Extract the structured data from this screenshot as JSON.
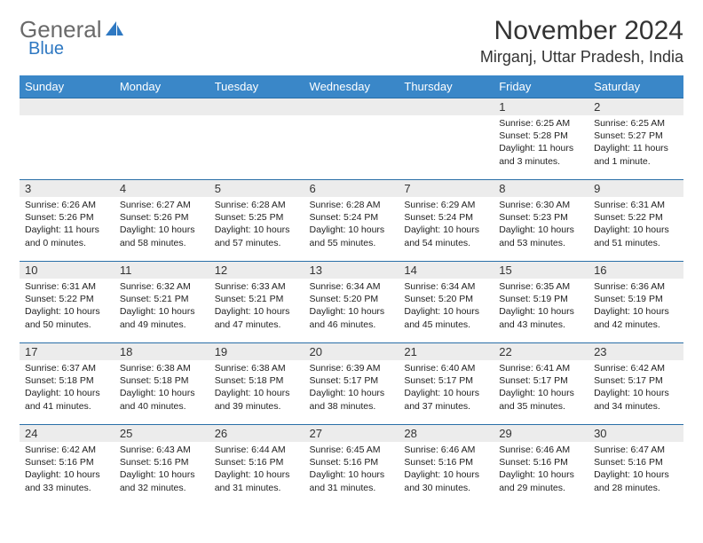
{
  "brand": {
    "part1": "General",
    "part2": "Blue"
  },
  "colors": {
    "header_bg": "#3a87c8",
    "header_text": "#ffffff",
    "row_border": "#2a6fa8",
    "daynum_bg": "#ececec",
    "text": "#222222",
    "brand_gray": "#6a6a6a",
    "brand_blue": "#2e78c2"
  },
  "title": "November 2024",
  "location": "Mirganj, Uttar Pradesh, India",
  "weekdays": [
    "Sunday",
    "Monday",
    "Tuesday",
    "Wednesday",
    "Thursday",
    "Friday",
    "Saturday"
  ],
  "weeks": [
    [
      null,
      null,
      null,
      null,
      null,
      {
        "n": "1",
        "sr": "Sunrise: 6:25 AM",
        "ss": "Sunset: 5:28 PM",
        "dl": "Daylight: 11 hours and 3 minutes."
      },
      {
        "n": "2",
        "sr": "Sunrise: 6:25 AM",
        "ss": "Sunset: 5:27 PM",
        "dl": "Daylight: 11 hours and 1 minute."
      }
    ],
    [
      {
        "n": "3",
        "sr": "Sunrise: 6:26 AM",
        "ss": "Sunset: 5:26 PM",
        "dl": "Daylight: 11 hours and 0 minutes."
      },
      {
        "n": "4",
        "sr": "Sunrise: 6:27 AM",
        "ss": "Sunset: 5:26 PM",
        "dl": "Daylight: 10 hours and 58 minutes."
      },
      {
        "n": "5",
        "sr": "Sunrise: 6:28 AM",
        "ss": "Sunset: 5:25 PM",
        "dl": "Daylight: 10 hours and 57 minutes."
      },
      {
        "n": "6",
        "sr": "Sunrise: 6:28 AM",
        "ss": "Sunset: 5:24 PM",
        "dl": "Daylight: 10 hours and 55 minutes."
      },
      {
        "n": "7",
        "sr": "Sunrise: 6:29 AM",
        "ss": "Sunset: 5:24 PM",
        "dl": "Daylight: 10 hours and 54 minutes."
      },
      {
        "n": "8",
        "sr": "Sunrise: 6:30 AM",
        "ss": "Sunset: 5:23 PM",
        "dl": "Daylight: 10 hours and 53 minutes."
      },
      {
        "n": "9",
        "sr": "Sunrise: 6:31 AM",
        "ss": "Sunset: 5:22 PM",
        "dl": "Daylight: 10 hours and 51 minutes."
      }
    ],
    [
      {
        "n": "10",
        "sr": "Sunrise: 6:31 AM",
        "ss": "Sunset: 5:22 PM",
        "dl": "Daylight: 10 hours and 50 minutes."
      },
      {
        "n": "11",
        "sr": "Sunrise: 6:32 AM",
        "ss": "Sunset: 5:21 PM",
        "dl": "Daylight: 10 hours and 49 minutes."
      },
      {
        "n": "12",
        "sr": "Sunrise: 6:33 AM",
        "ss": "Sunset: 5:21 PM",
        "dl": "Daylight: 10 hours and 47 minutes."
      },
      {
        "n": "13",
        "sr": "Sunrise: 6:34 AM",
        "ss": "Sunset: 5:20 PM",
        "dl": "Daylight: 10 hours and 46 minutes."
      },
      {
        "n": "14",
        "sr": "Sunrise: 6:34 AM",
        "ss": "Sunset: 5:20 PM",
        "dl": "Daylight: 10 hours and 45 minutes."
      },
      {
        "n": "15",
        "sr": "Sunrise: 6:35 AM",
        "ss": "Sunset: 5:19 PM",
        "dl": "Daylight: 10 hours and 43 minutes."
      },
      {
        "n": "16",
        "sr": "Sunrise: 6:36 AM",
        "ss": "Sunset: 5:19 PM",
        "dl": "Daylight: 10 hours and 42 minutes."
      }
    ],
    [
      {
        "n": "17",
        "sr": "Sunrise: 6:37 AM",
        "ss": "Sunset: 5:18 PM",
        "dl": "Daylight: 10 hours and 41 minutes."
      },
      {
        "n": "18",
        "sr": "Sunrise: 6:38 AM",
        "ss": "Sunset: 5:18 PM",
        "dl": "Daylight: 10 hours and 40 minutes."
      },
      {
        "n": "19",
        "sr": "Sunrise: 6:38 AM",
        "ss": "Sunset: 5:18 PM",
        "dl": "Daylight: 10 hours and 39 minutes."
      },
      {
        "n": "20",
        "sr": "Sunrise: 6:39 AM",
        "ss": "Sunset: 5:17 PM",
        "dl": "Daylight: 10 hours and 38 minutes."
      },
      {
        "n": "21",
        "sr": "Sunrise: 6:40 AM",
        "ss": "Sunset: 5:17 PM",
        "dl": "Daylight: 10 hours and 37 minutes."
      },
      {
        "n": "22",
        "sr": "Sunrise: 6:41 AM",
        "ss": "Sunset: 5:17 PM",
        "dl": "Daylight: 10 hours and 35 minutes."
      },
      {
        "n": "23",
        "sr": "Sunrise: 6:42 AM",
        "ss": "Sunset: 5:17 PM",
        "dl": "Daylight: 10 hours and 34 minutes."
      }
    ],
    [
      {
        "n": "24",
        "sr": "Sunrise: 6:42 AM",
        "ss": "Sunset: 5:16 PM",
        "dl": "Daylight: 10 hours and 33 minutes."
      },
      {
        "n": "25",
        "sr": "Sunrise: 6:43 AM",
        "ss": "Sunset: 5:16 PM",
        "dl": "Daylight: 10 hours and 32 minutes."
      },
      {
        "n": "26",
        "sr": "Sunrise: 6:44 AM",
        "ss": "Sunset: 5:16 PM",
        "dl": "Daylight: 10 hours and 31 minutes."
      },
      {
        "n": "27",
        "sr": "Sunrise: 6:45 AM",
        "ss": "Sunset: 5:16 PM",
        "dl": "Daylight: 10 hours and 31 minutes."
      },
      {
        "n": "28",
        "sr": "Sunrise: 6:46 AM",
        "ss": "Sunset: 5:16 PM",
        "dl": "Daylight: 10 hours and 30 minutes."
      },
      {
        "n": "29",
        "sr": "Sunrise: 6:46 AM",
        "ss": "Sunset: 5:16 PM",
        "dl": "Daylight: 10 hours and 29 minutes."
      },
      {
        "n": "30",
        "sr": "Sunrise: 6:47 AM",
        "ss": "Sunset: 5:16 PM",
        "dl": "Daylight: 10 hours and 28 minutes."
      }
    ]
  ]
}
